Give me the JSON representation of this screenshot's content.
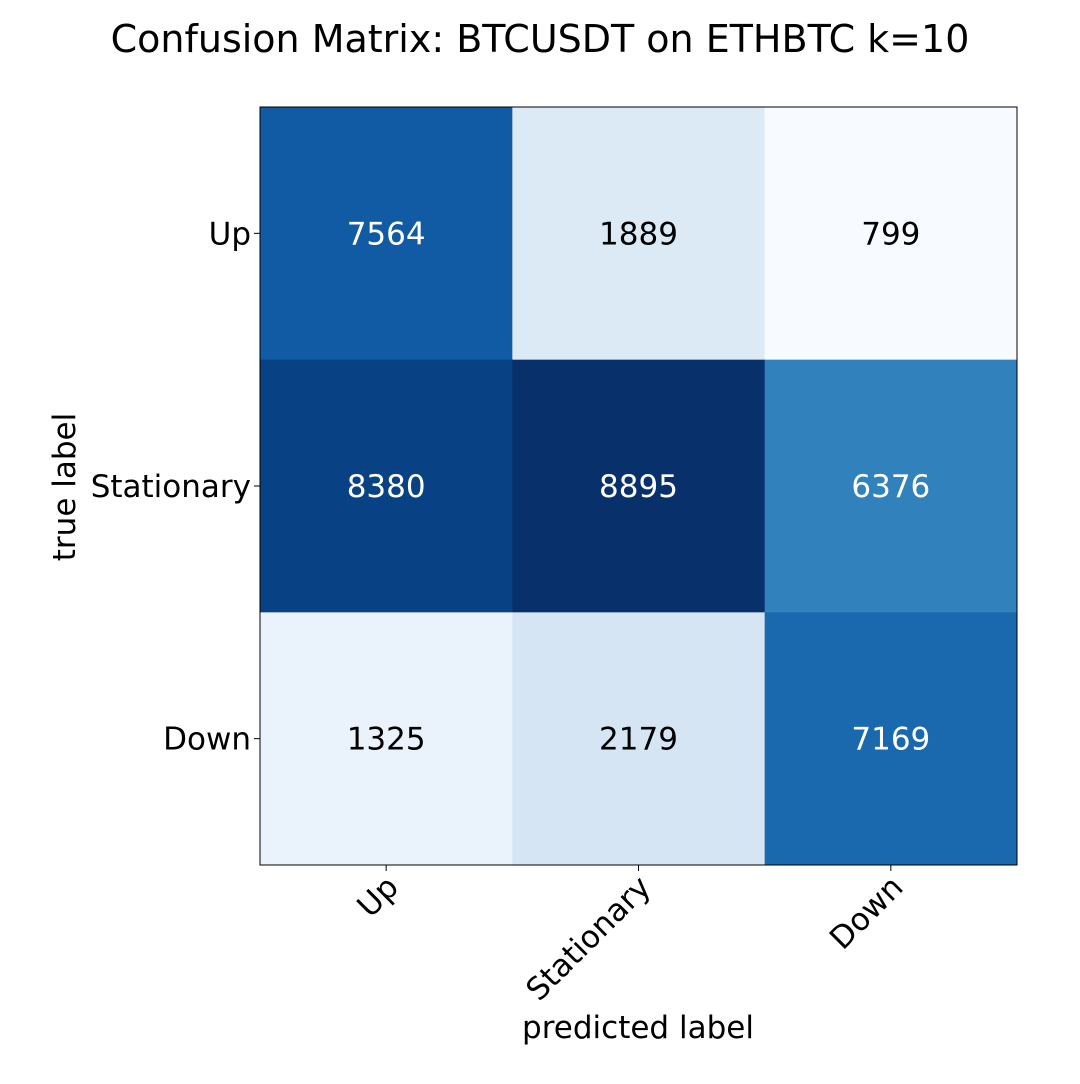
{
  "chart_data": {
    "type": "heatmap",
    "title": "Confusion Matrix: BTCUSDT on ETHBTC k=10",
    "xlabel": "predicted label",
    "ylabel": "true label",
    "x_categories": [
      "Up",
      "Stationary",
      "Down"
    ],
    "y_categories": [
      "Up",
      "Stationary",
      "Down"
    ],
    "values": [
      [
        7564,
        1889,
        799
      ],
      [
        8380,
        8895,
        6376
      ],
      [
        1325,
        2179,
        7169
      ]
    ],
    "colormap": "Blues",
    "colormap_stops": [
      "#f7fbff",
      "#deebf7",
      "#c6dbef",
      "#9ecae1",
      "#6baed6",
      "#4292c6",
      "#2171b5",
      "#08519c",
      "#08306b"
    ],
    "value_range": [
      799,
      8895
    ],
    "text_colors": {
      "light": "#ffffff",
      "dark": "#000000"
    },
    "grid": false,
    "legend": "none"
  }
}
